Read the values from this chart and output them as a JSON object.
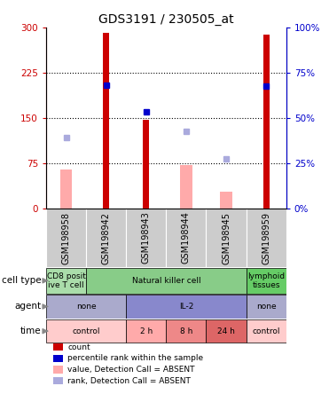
{
  "title": "GDS3191 / 230505_at",
  "samples": [
    "GSM198958",
    "GSM198942",
    "GSM198943",
    "GSM198944",
    "GSM198945",
    "GSM198959"
  ],
  "bar_heights_red": [
    0,
    292,
    148,
    0,
    0,
    289
  ],
  "bar_heights_pink": [
    65,
    0,
    0,
    72,
    28,
    0
  ],
  "rank_dots_blue": [
    null,
    205,
    160,
    null,
    null,
    203
  ],
  "rank_dots_lightblue": [
    118,
    null,
    null,
    128,
    82,
    null
  ],
  "ylim": [
    0,
    300
  ],
  "yticks": [
    0,
    75,
    150,
    225,
    300
  ],
  "y2labels": [
    "0%",
    "25%",
    "50%",
    "75%",
    "100%"
  ],
  "red_color": "#cc0000",
  "pink_color": "#ffaaaa",
  "blue_color": "#0000cc",
  "lightblue_color": "#aaaadd",
  "title_fontsize": 10,
  "tick_fontsize": 7.5,
  "label_fontsize": 7,
  "cell_type_data": [
    {
      "span": [
        0,
        1
      ],
      "label": "CD8 posit\nive T cell",
      "color": "#aaddaa"
    },
    {
      "span": [
        1,
        5
      ],
      "label": "Natural killer cell",
      "color": "#88cc88"
    },
    {
      "span": [
        5,
        6
      ],
      "label": "lymphoid\ntissues",
      "color": "#66cc66"
    }
  ],
  "agent_data": [
    {
      "span": [
        0,
        2
      ],
      "label": "none",
      "color": "#aaaacc"
    },
    {
      "span": [
        2,
        5
      ],
      "label": "IL-2",
      "color": "#8888cc"
    },
    {
      "span": [
        5,
        6
      ],
      "label": "none",
      "color": "#aaaacc"
    }
  ],
  "time_data": [
    {
      "span": [
        0,
        2
      ],
      "label": "control",
      "color": "#ffcccc"
    },
    {
      "span": [
        2,
        3
      ],
      "label": "2 h",
      "color": "#ffaaaa"
    },
    {
      "span": [
        3,
        4
      ],
      "label": "8 h",
      "color": "#ee8888"
    },
    {
      "span": [
        4,
        5
      ],
      "label": "24 h",
      "color": "#dd6666"
    },
    {
      "span": [
        5,
        6
      ],
      "label": "control",
      "color": "#ffcccc"
    }
  ],
  "legend_items": [
    {
      "color": "#cc0000",
      "label": "count"
    },
    {
      "color": "#0000cc",
      "label": "percentile rank within the sample"
    },
    {
      "color": "#ffaaaa",
      "label": "value, Detection Call = ABSENT"
    },
    {
      "color": "#aaaadd",
      "label": "rank, Detection Call = ABSENT"
    }
  ]
}
